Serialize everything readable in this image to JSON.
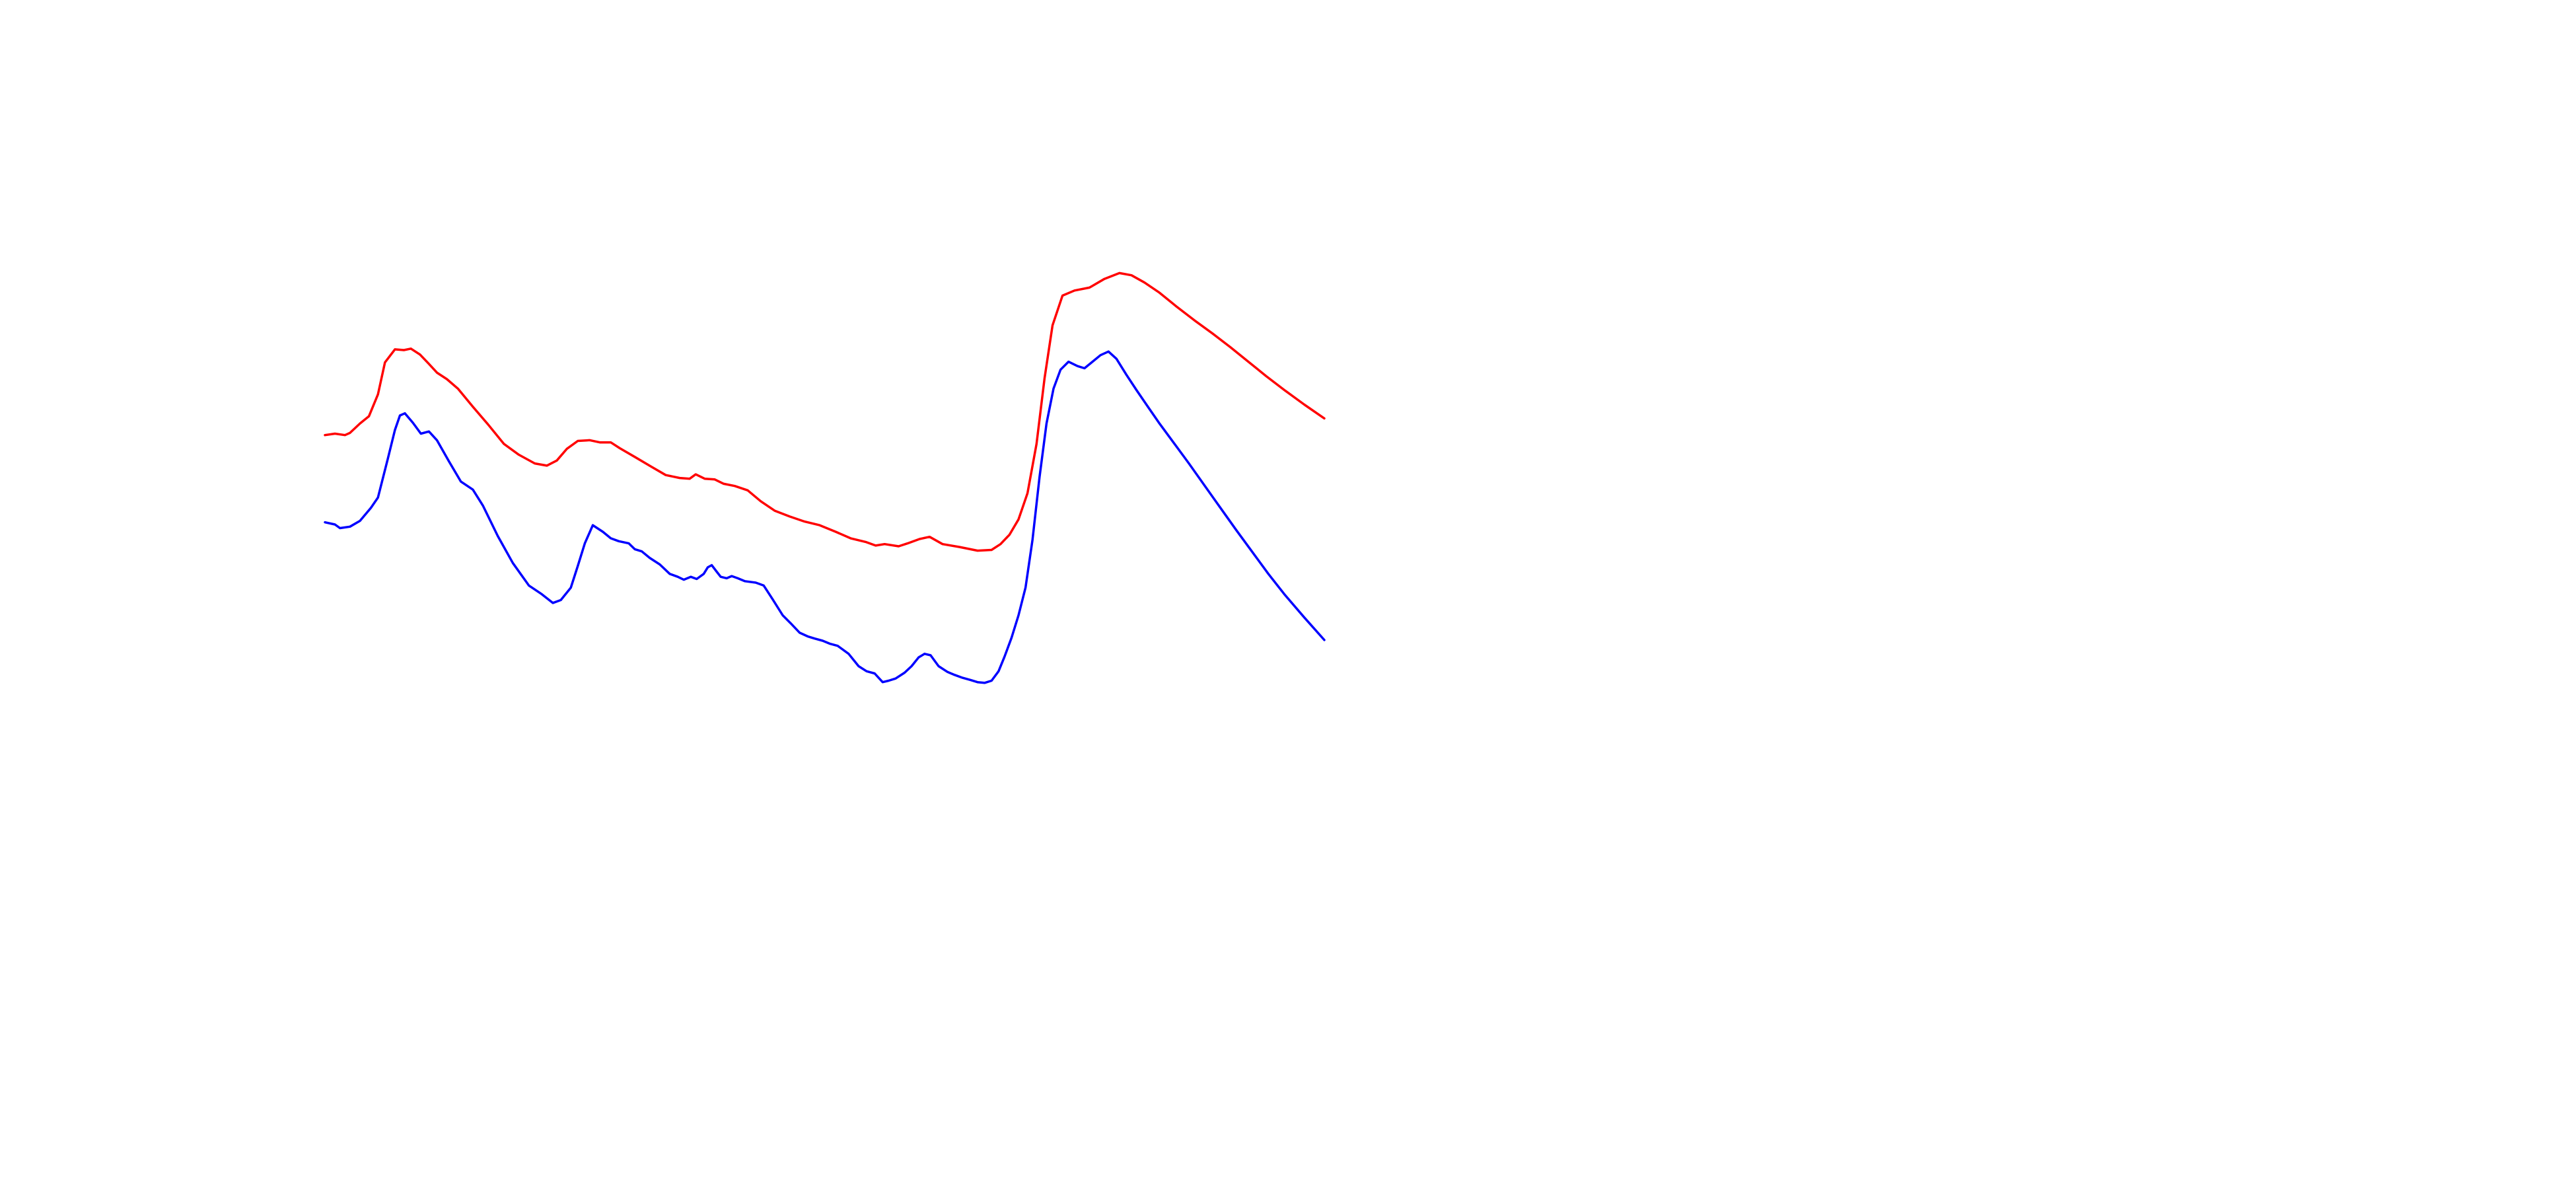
{
  "chart_data": {
    "type": "line",
    "title": "",
    "xlabel": "",
    "ylabel": "",
    "grid": false,
    "axes_visible": false,
    "legend": "none",
    "xlim": [
      0,
      100
    ],
    "ylim": [
      0,
      100
    ],
    "series": [
      {
        "color": "#ff0000",
        "points": [
          [
            0.0,
            58.3
          ],
          [
            1.0,
            58.5
          ],
          [
            2.0,
            58.3
          ],
          [
            2.5,
            58.6
          ],
          [
            3.5,
            59.9
          ],
          [
            4.4,
            60.9
          ],
          [
            5.3,
            63.9
          ],
          [
            6.0,
            68.3
          ],
          [
            7.0,
            70.1
          ],
          [
            7.9,
            70.0
          ],
          [
            8.6,
            70.2
          ],
          [
            9.5,
            69.4
          ],
          [
            10.4,
            68.1
          ],
          [
            11.2,
            66.9
          ],
          [
            12.2,
            66.0
          ],
          [
            13.3,
            64.7
          ],
          [
            14.8,
            62.2
          ],
          [
            16.3,
            59.8
          ],
          [
            17.9,
            57.1
          ],
          [
            19.4,
            55.6
          ],
          [
            21.0,
            54.4
          ],
          [
            22.2,
            54.1
          ],
          [
            23.2,
            54.8
          ],
          [
            24.2,
            56.4
          ],
          [
            25.3,
            57.5
          ],
          [
            26.5,
            57.6
          ],
          [
            27.5,
            57.3
          ],
          [
            28.6,
            57.3
          ],
          [
            29.5,
            56.5
          ],
          [
            31.0,
            55.3
          ],
          [
            32.6,
            54.0
          ],
          [
            34.1,
            52.8
          ],
          [
            35.5,
            52.4
          ],
          [
            36.5,
            52.3
          ],
          [
            37.1,
            52.9
          ],
          [
            38.0,
            52.3
          ],
          [
            39.0,
            52.2
          ],
          [
            39.9,
            51.6
          ],
          [
            41.0,
            51.3
          ],
          [
            42.3,
            50.7
          ],
          [
            43.6,
            49.2
          ],
          [
            45.0,
            47.9
          ],
          [
            46.5,
            47.1
          ],
          [
            48.0,
            46.4
          ],
          [
            49.5,
            45.9
          ],
          [
            51.1,
            45.0
          ],
          [
            52.6,
            44.1
          ],
          [
            54.1,
            43.6
          ],
          [
            55.1,
            43.1
          ],
          [
            56.0,
            43.3
          ],
          [
            57.4,
            43.0
          ],
          [
            58.3,
            43.4
          ],
          [
            59.5,
            44.0
          ],
          [
            60.5,
            44.3
          ],
          [
            61.8,
            43.3
          ],
          [
            63.5,
            42.9
          ],
          [
            65.3,
            42.4
          ],
          [
            66.7,
            42.5
          ],
          [
            67.6,
            43.3
          ],
          [
            68.5,
            44.6
          ],
          [
            69.4,
            46.7
          ],
          [
            70.3,
            50.3
          ],
          [
            71.2,
            57.1
          ],
          [
            72.0,
            66.1
          ],
          [
            72.8,
            73.4
          ],
          [
            73.8,
            77.5
          ],
          [
            75.0,
            78.2
          ],
          [
            76.5,
            78.6
          ],
          [
            78.0,
            79.8
          ],
          [
            79.5,
            80.6
          ],
          [
            80.7,
            80.3
          ],
          [
            82.0,
            79.3
          ],
          [
            83.5,
            77.9
          ],
          [
            85.2,
            76.0
          ],
          [
            87.0,
            74.1
          ],
          [
            88.8,
            72.3
          ],
          [
            90.6,
            70.4
          ],
          [
            92.4,
            68.4
          ],
          [
            94.2,
            66.4
          ],
          [
            96.1,
            64.4
          ],
          [
            98.0,
            62.5
          ],
          [
            100.0,
            60.6
          ]
        ]
      },
      {
        "color": "#0000ff",
        "points": [
          [
            0.0,
            46.3
          ],
          [
            1.0,
            46.0
          ],
          [
            1.5,
            45.5
          ],
          [
            2.5,
            45.7
          ],
          [
            3.5,
            46.5
          ],
          [
            4.6,
            48.3
          ],
          [
            5.3,
            49.7
          ],
          [
            6.3,
            55.1
          ],
          [
            7.0,
            59.0
          ],
          [
            7.5,
            61.0
          ],
          [
            8.0,
            61.3
          ],
          [
            8.8,
            60.0
          ],
          [
            9.6,
            58.5
          ],
          [
            10.4,
            58.8
          ],
          [
            11.2,
            57.6
          ],
          [
            12.4,
            54.7
          ],
          [
            13.6,
            51.9
          ],
          [
            14.8,
            50.8
          ],
          [
            15.8,
            48.6
          ],
          [
            17.3,
            44.4
          ],
          [
            18.8,
            40.7
          ],
          [
            20.4,
            37.6
          ],
          [
            21.7,
            36.4
          ],
          [
            22.8,
            35.2
          ],
          [
            23.6,
            35.6
          ],
          [
            24.6,
            37.3
          ],
          [
            25.3,
            40.3
          ],
          [
            26.0,
            43.4
          ],
          [
            26.8,
            45.9
          ],
          [
            27.8,
            45.0
          ],
          [
            28.6,
            44.1
          ],
          [
            29.4,
            43.7
          ],
          [
            30.4,
            43.4
          ],
          [
            31.0,
            42.6
          ],
          [
            31.7,
            42.3
          ],
          [
            32.5,
            41.4
          ],
          [
            33.5,
            40.5
          ],
          [
            34.5,
            39.2
          ],
          [
            35.3,
            38.8
          ],
          [
            35.9,
            38.4
          ],
          [
            36.6,
            38.8
          ],
          [
            37.2,
            38.5
          ],
          [
            37.9,
            39.2
          ],
          [
            38.3,
            40.1
          ],
          [
            38.7,
            40.4
          ],
          [
            39.2,
            39.5
          ],
          [
            39.6,
            38.8
          ],
          [
            40.2,
            38.6
          ],
          [
            40.7,
            38.9
          ],
          [
            41.3,
            38.6
          ],
          [
            42.0,
            38.2
          ],
          [
            43.1,
            38.0
          ],
          [
            43.9,
            37.6
          ],
          [
            44.8,
            35.7
          ],
          [
            45.8,
            33.5
          ],
          [
            46.6,
            32.4
          ],
          [
            47.5,
            31.1
          ],
          [
            48.3,
            30.6
          ],
          [
            49.0,
            30.3
          ],
          [
            49.8,
            30.0
          ],
          [
            50.5,
            29.6
          ],
          [
            51.3,
            29.3
          ],
          [
            52.4,
            28.2
          ],
          [
            53.4,
            26.5
          ],
          [
            54.2,
            25.8
          ],
          [
            55.0,
            25.5
          ],
          [
            55.8,
            24.3
          ],
          [
            56.4,
            24.5
          ],
          [
            57.1,
            24.8
          ],
          [
            58.0,
            25.6
          ],
          [
            58.7,
            26.5
          ],
          [
            59.4,
            27.7
          ],
          [
            60.0,
            28.2
          ],
          [
            60.6,
            28.0
          ],
          [
            61.4,
            26.5
          ],
          [
            62.3,
            25.7
          ],
          [
            63.0,
            25.3
          ],
          [
            63.8,
            24.9
          ],
          [
            64.6,
            24.6
          ],
          [
            65.3,
            24.3
          ],
          [
            66.0,
            24.2
          ],
          [
            66.7,
            24.5
          ],
          [
            67.4,
            25.8
          ],
          [
            68.0,
            27.8
          ],
          [
            68.7,
            30.4
          ],
          [
            69.4,
            33.5
          ],
          [
            70.1,
            37.3
          ],
          [
            70.8,
            43.9
          ],
          [
            71.5,
            52.5
          ],
          [
            72.2,
            59.9
          ],
          [
            72.9,
            64.7
          ],
          [
            73.6,
            67.3
          ],
          [
            74.4,
            68.4
          ],
          [
            75.3,
            67.8
          ],
          [
            76.0,
            67.5
          ],
          [
            76.8,
            68.4
          ],
          [
            77.6,
            69.3
          ],
          [
            78.4,
            69.8
          ],
          [
            79.2,
            68.8
          ],
          [
            80.2,
            66.6
          ],
          [
            81.2,
            64.5
          ],
          [
            82.3,
            62.3
          ],
          [
            83.5,
            59.9
          ],
          [
            84.9,
            57.3
          ],
          [
            86.4,
            54.5
          ],
          [
            88.0,
            51.4
          ],
          [
            89.6,
            48.3
          ],
          [
            91.2,
            45.2
          ],
          [
            92.8,
            42.2
          ],
          [
            94.4,
            39.2
          ],
          [
            96.0,
            36.4
          ],
          [
            98.0,
            33.2
          ],
          [
            100.0,
            30.1
          ]
        ]
      }
    ]
  }
}
